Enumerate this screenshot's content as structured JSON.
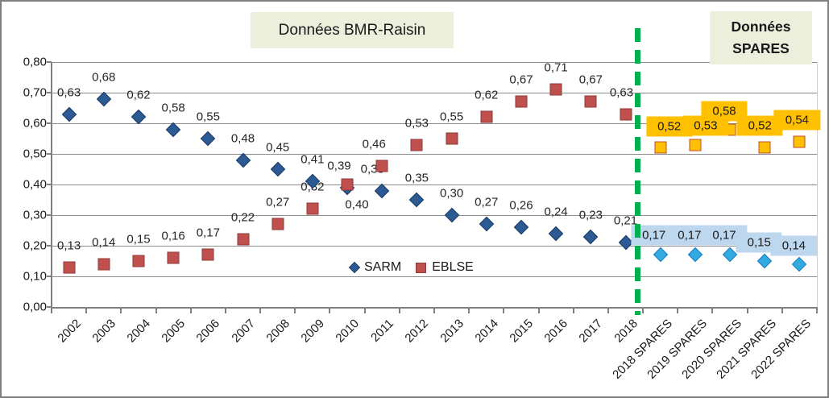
{
  "chart_data": {
    "type": "scatter",
    "annotations": {
      "left_region_title": "Données BMR-Raisin",
      "right_region_title_lines": [
        "Données",
        "SPARES"
      ]
    },
    "categories": [
      "2002",
      "2003",
      "2004",
      "2005",
      "2006",
      "2007",
      "2008",
      "2009",
      "2010",
      "2011",
      "2012",
      "2013",
      "2014",
      "2015",
      "2016",
      "2017",
      "2018",
      "2018 SPARES",
      "2019 SPARES",
      "2020 SPARES",
      "2021 SPARES",
      "2022 SPARES"
    ],
    "y_axis": {
      "min": 0,
      "max": 0.8,
      "step": 0.1,
      "tick_labels": [
        "0,00",
        "0,10",
        "0,20",
        "0,30",
        "0,40",
        "0,50",
        "0,60",
        "0,70",
        "0,80"
      ]
    },
    "legend": {
      "position": "inside-bottom-center",
      "items": [
        {
          "name": "SARM",
          "marker": "diamond",
          "fill": "#2c5a92",
          "border": "#1b3b66"
        },
        {
          "name": "EBLSE",
          "marker": "square",
          "fill": "#c0504d",
          "border": "#8e3a37"
        }
      ]
    },
    "separator": {
      "type": "dashed-vertical-line",
      "color": "#00b050",
      "between": "2018 | 2018 SPARES"
    },
    "grid": true,
    "series": [
      {
        "name": "SARM (BMR-Raisin)",
        "marker": "diamond",
        "fill": "#2c5a92",
        "border": "#1b3b66",
        "label_bg": null,
        "points": [
          {
            "i": 0,
            "v": 0.63,
            "t": "0,63"
          },
          {
            "i": 1,
            "v": 0.68,
            "t": "0,68"
          },
          {
            "i": 2,
            "v": 0.62,
            "t": "0,62"
          },
          {
            "i": 3,
            "v": 0.58,
            "t": "0,58"
          },
          {
            "i": 4,
            "v": 0.55,
            "t": "0,55"
          },
          {
            "i": 5,
            "v": 0.48,
            "t": "0,48"
          },
          {
            "i": 6,
            "v": 0.45,
            "t": "0,45"
          },
          {
            "i": 7,
            "v": 0.41,
            "t": "0,41"
          },
          {
            "i": 8,
            "v": 0.39,
            "t": "0,39",
            "dx": -10
          },
          {
            "i": 9,
            "v": 0.38,
            "t": "0,38",
            "dx": -12
          },
          {
            "i": 10,
            "v": 0.35,
            "t": "0,35"
          },
          {
            "i": 11,
            "v": 0.3,
            "t": "0,30"
          },
          {
            "i": 12,
            "v": 0.27,
            "t": "0,27"
          },
          {
            "i": 13,
            "v": 0.26,
            "t": "0,26"
          },
          {
            "i": 14,
            "v": 0.24,
            "t": "0,24"
          },
          {
            "i": 15,
            "v": 0.23,
            "t": "0,23"
          },
          {
            "i": 16,
            "v": 0.21,
            "t": "0,21"
          }
        ]
      },
      {
        "name": "EBLSE (BMR-Raisin)",
        "marker": "square",
        "fill": "#c0504d",
        "border": "#8e3a37",
        "label_bg": null,
        "points": [
          {
            "i": 0,
            "v": 0.13,
            "t": "0,13"
          },
          {
            "i": 1,
            "v": 0.14,
            "t": "0,14"
          },
          {
            "i": 2,
            "v": 0.15,
            "t": "0,15"
          },
          {
            "i": 3,
            "v": 0.16,
            "t": "0,16"
          },
          {
            "i": 4,
            "v": 0.17,
            "t": "0,17"
          },
          {
            "i": 5,
            "v": 0.22,
            "t": "0,22"
          },
          {
            "i": 6,
            "v": 0.27,
            "t": "0,27"
          },
          {
            "i": 7,
            "v": 0.32,
            "t": "0,32"
          },
          {
            "i": 8,
            "v": 0.4,
            "t": "0,40",
            "dx": 12,
            "dy": 25
          },
          {
            "i": 9,
            "v": 0.46,
            "t": "0,46",
            "dx": -10
          },
          {
            "i": 10,
            "v": 0.53,
            "t": "0,53"
          },
          {
            "i": 11,
            "v": 0.55,
            "t": "0,55"
          },
          {
            "i": 12,
            "v": 0.62,
            "t": "0,62"
          },
          {
            "i": 13,
            "v": 0.67,
            "t": "0,67"
          },
          {
            "i": 14,
            "v": 0.71,
            "t": "0,71"
          },
          {
            "i": 15,
            "v": 0.67,
            "t": "0,67"
          },
          {
            "i": 16,
            "v": 0.63,
            "t": "0,63",
            "dx": -5
          }
        ]
      },
      {
        "name": "SARM (SPARES)",
        "marker": "diamond",
        "fill": "#33abe1",
        "border": "#1f7ec2",
        "label_bg": "#bdd7ee",
        "points": [
          {
            "i": 17,
            "v": 0.17,
            "t": "0,17",
            "dx": -8,
            "dy": -24
          },
          {
            "i": 18,
            "v": 0.17,
            "t": "0,17",
            "dx": -7,
            "dy": -24
          },
          {
            "i": 19,
            "v": 0.17,
            "t": "0,17",
            "dx": -7,
            "dy": -24
          },
          {
            "i": 20,
            "v": 0.15,
            "t": "0,15",
            "dx": -7,
            "dy": -23
          },
          {
            "i": 21,
            "v": 0.14,
            "t": "0,14",
            "dx": -7,
            "dy": -23
          }
        ]
      },
      {
        "name": "EBLSE (SPARES)",
        "marker": "square",
        "fill": "#ffc000",
        "border": "#be4b30",
        "label_bg": "#ffc000",
        "points": [
          {
            "i": 17,
            "v": 0.52,
            "t": "0,52",
            "dx": 11,
            "dy": -26
          },
          {
            "i": 18,
            "v": 0.53,
            "t": "0,53",
            "dx": 13,
            "dy": -24
          },
          {
            "i": 19,
            "v": 0.58,
            "t": "0,58",
            "dx": -7,
            "dy": -23
          },
          {
            "i": 20,
            "v": 0.52,
            "t": "0,52",
            "dx": -6,
            "dy": -27
          },
          {
            "i": 21,
            "v": 0.54,
            "t": "0,54",
            "dx": -3,
            "dy": -27
          }
        ]
      }
    ]
  }
}
